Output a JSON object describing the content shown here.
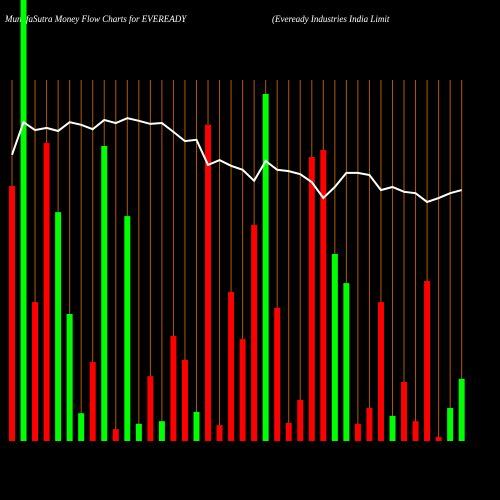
{
  "chart_data": {
    "type": "bar",
    "title": "MunafaSutra  Money Flow  Charts for EVEREADY",
    "subtitle": "(Eveready Industries India  Limit",
    "categories": [
      null,
      null,
      null,
      null,
      null,
      null,
      null,
      null,
      null,
      null,
      null,
      null,
      null,
      null,
      null,
      null,
      null,
      null,
      null,
      null,
      null,
      null,
      null,
      null,
      null,
      null,
      null,
      null,
      null,
      null,
      null,
      null,
      null,
      null,
      null,
      null,
      null,
      null,
      null,
      null
    ],
    "ylim": [
      0,
      100
    ],
    "grid_color": "#b35900",
    "series": [
      {
        "values": [
          57.8,
          100,
          31.5,
          67.6,
          51.9,
          28.8,
          6.3,
          17.9,
          66.9,
          2.7,
          51.0,
          3.9,
          14.7,
          4.5,
          23.8,
          18.4,
          6.6,
          71.7,
          3.6,
          33.8,
          23.1,
          49.0,
          78.7,
          30.2,
          4.1,
          9.3,
          64.4,
          66.0,
          42.4,
          35.8,
          3.9,
          7.5,
          31.5,
          5.7,
          13.4,
          4.5,
          36.3,
          0.9,
          7.5,
          14.1
        ],
        "colors": [
          "#ff0000",
          "#00ff00",
          "#ff0000",
          "#ff0000",
          "#00ff00",
          "#00ff00",
          "#00ff00",
          "#ff0000",
          "#00ff00",
          "#ff0000",
          "#00ff00",
          "#00ff00",
          "#ff0000",
          "#00ff00",
          "#ff0000",
          "#ff0000",
          "#00ff00",
          "#ff0000",
          "#ff0000",
          "#ff0000",
          "#ff0000",
          "#ff0000",
          "#00ff00",
          "#ff0000",
          "#ff0000",
          "#ff0000",
          "#ff0000",
          "#ff0000",
          "#00ff00",
          "#00ff00",
          "#ff0000",
          "#ff0000",
          "#ff0000",
          "#00ff00",
          "#ff0000",
          "#ff0000",
          "#ff0000",
          "#ff0000",
          "#00ff00",
          "#00ff00"
        ]
      },
      {
        "type": "line",
        "color": "#ffffff",
        "values": [
          64.9,
          72.3,
          70.5,
          71.0,
          70.3,
          72.3,
          71.7,
          70.7,
          72.8,
          72.1,
          73.2,
          72.6,
          71.9,
          72.1,
          70.1,
          68.0,
          68.3,
          62.6,
          63.7,
          62.4,
          61.5,
          59.0,
          63.5,
          61.5,
          61.2,
          60.5,
          58.7,
          55.1,
          57.6,
          60.8,
          60.8,
          60.3,
          56.9,
          57.6,
          56.5,
          56.2,
          54.2,
          55.1,
          56.2,
          56.9
        ]
      }
    ]
  }
}
